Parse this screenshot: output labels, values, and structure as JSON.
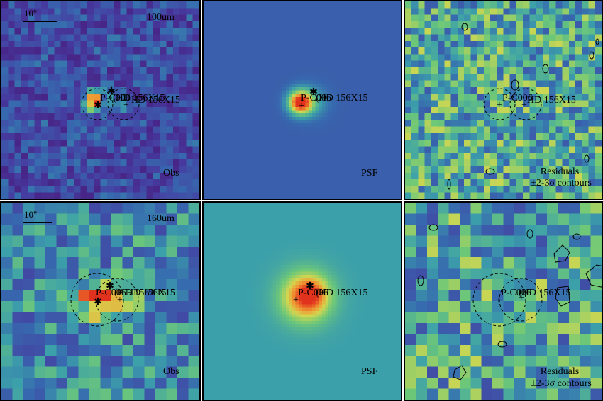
{
  "rows": [
    {
      "band": "100um",
      "scalebar": "10\"",
      "panels": [
        {
          "kind": "obs",
          "caption": "Obs"
        },
        {
          "kind": "psf",
          "caption": "PSF"
        },
        {
          "kind": "res",
          "caption": "Residuals",
          "caption2": "±2-3σ contours"
        }
      ],
      "source_labels": [
        "P-C006",
        "(HD 156X15",
        "HD 156X15"
      ]
    },
    {
      "band": "160um",
      "scalebar": "10\"",
      "panels": [
        {
          "kind": "obs",
          "caption": "Obs"
        },
        {
          "kind": "psf",
          "caption": "PSF"
        },
        {
          "kind": "res",
          "caption": "Residuals",
          "caption2": "±2-3σ contours"
        }
      ],
      "source_labels": [
        "P-C006",
        "(HD 156X15",
        "HD 156X15"
      ]
    }
  ],
  "colors": {
    "map_low": "#4b1a8a",
    "map_mid": "#3fb3a8",
    "map_high": "#e23b1e",
    "psf_bg_top": "#3d6bb5",
    "psf_bg_bottom": "#4fa3a5"
  }
}
